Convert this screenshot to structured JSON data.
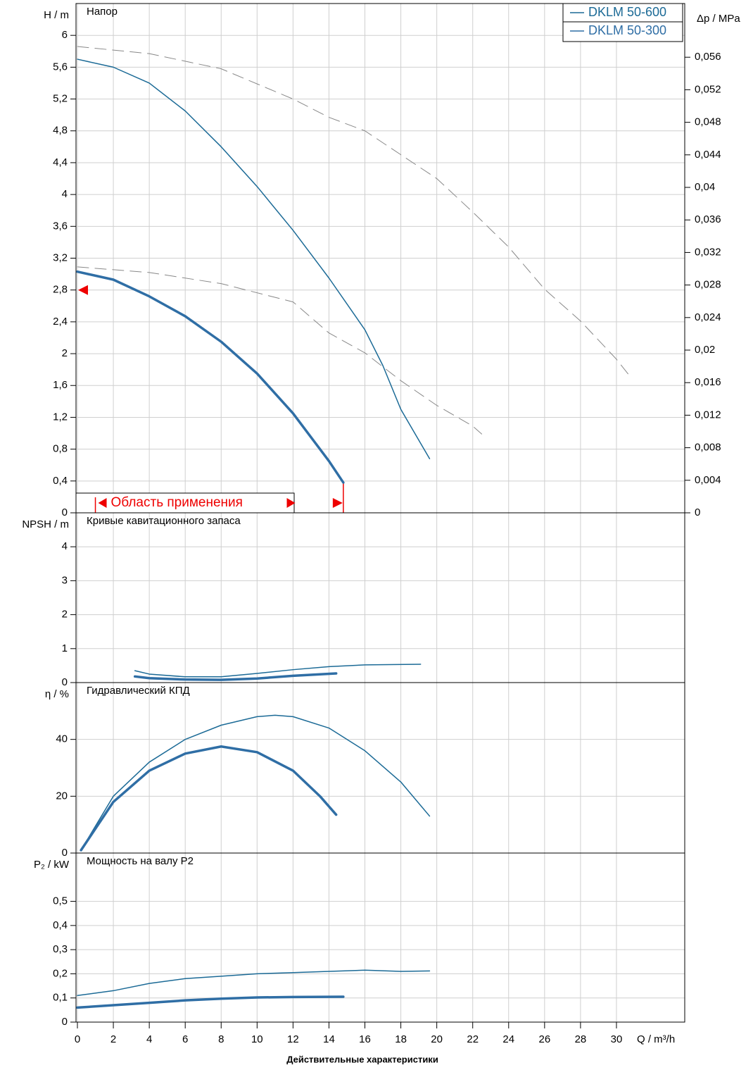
{
  "chart_data": [
    {
      "type": "line",
      "title": "Напор",
      "ylabel": "H / m",
      "y2label": "Δp / MPa",
      "ylim": [
        0,
        6.4
      ],
      "yticks": [
        0,
        {
          "value": 0.4,
          "label": "0,4"
        },
        {
          "value": 0.8,
          "label": "0,8"
        },
        {
          "value": 1.2,
          "label": "1,2"
        },
        {
          "value": 1.6,
          "label": "1,6"
        },
        2,
        {
          "value": 2.4,
          "label": "2,4"
        },
        {
          "value": 2.8,
          "label": "2,8"
        },
        {
          "value": 3.2,
          "label": "3,2"
        },
        {
          "value": 3.6,
          "label": "3,6"
        },
        4,
        {
          "value": 4.4,
          "label": "4,4"
        },
        {
          "value": 4.8,
          "label": "4,8"
        },
        {
          "value": 5.2,
          "label": "5,2"
        },
        {
          "value": 5.6,
          "label": "5,6"
        },
        6
      ],
      "y2lim": [
        0,
        0.0626
      ],
      "y2ticks": [
        0,
        {
          "value": 0.004,
          "label": "0,004"
        },
        {
          "value": 0.008,
          "label": "0,008"
        },
        {
          "value": 0.012,
          "label": "0,012"
        },
        {
          "value": 0.016,
          "label": "0,016"
        },
        {
          "value": 0.02,
          "label": "0,02"
        },
        {
          "value": 0.024,
          "label": "0,024"
        },
        {
          "value": 0.028,
          "label": "0,028"
        },
        {
          "value": 0.032,
          "label": "0,032"
        },
        {
          "value": 0.036,
          "label": "0,036"
        },
        {
          "value": 0.04,
          "label": "0,04"
        },
        {
          "value": 0.044,
          "label": "0,044"
        },
        {
          "value": 0.048,
          "label": "0,048"
        },
        {
          "value": 0.052,
          "label": "0,052"
        },
        {
          "value": 0.056,
          "label": "0,056"
        }
      ],
      "grid": true,
      "legend": "top-right",
      "annotation": "Область применения",
      "application_range": [
        1,
        14.8
      ],
      "max_head_marker": 2.8,
      "series": [
        {
          "name": "DKLM 50-600",
          "color": "#1b6a96",
          "width": 1.5,
          "x": [
            0,
            2,
            4,
            6,
            8,
            10,
            12,
            14,
            16,
            17,
            18,
            19.6
          ],
          "values": [
            5.7,
            5.6,
            5.4,
            5.05,
            4.6,
            4.1,
            3.55,
            2.95,
            2.3,
            1.85,
            1.3,
            0.68
          ]
        },
        {
          "name": "DKLM 50-300",
          "color": "#2f6ea5",
          "width": 3.5,
          "x": [
            0,
            2,
            4,
            6,
            8,
            10,
            12,
            14,
            14.8
          ],
          "values": [
            3.03,
            2.93,
            2.72,
            2.47,
            2.15,
            1.75,
            1.25,
            0.65,
            0.38
          ]
        },
        {
          "color": "#888888",
          "width": 1,
          "dashed": true,
          "x": [
            0,
            4,
            8,
            12,
            14,
            16,
            18,
            20,
            22,
            24,
            26,
            28,
            30,
            30.7
          ],
          "values": [
            5.86,
            5.77,
            5.58,
            5.2,
            4.97,
            4.8,
            4.5,
            4.2,
            3.78,
            3.34,
            2.81,
            2.41,
            1.93,
            1.73
          ]
        },
        {
          "color": "#888888",
          "width": 1,
          "dashed": true,
          "x": [
            0,
            4,
            8,
            12,
            14,
            16,
            18,
            20,
            22,
            22.5
          ],
          "values": [
            3.09,
            3.02,
            2.88,
            2.65,
            2.26,
            2.01,
            1.66,
            1.35,
            1.09,
            0.99
          ]
        }
      ]
    },
    {
      "type": "line",
      "title": "Кривые кавитационного запаса",
      "ylabel": "NPSH / m",
      "ylim": [
        0,
        5
      ],
      "yticks": [
        0,
        1,
        2,
        3,
        4
      ],
      "grid": true,
      "series": [
        {
          "color": "#1b6a96",
          "width": 1.5,
          "x": [
            3.2,
            4,
            6,
            8,
            10,
            12,
            14,
            16,
            19.1
          ],
          "values": [
            0.35,
            0.25,
            0.17,
            0.17,
            0.27,
            0.38,
            0.47,
            0.52,
            0.54
          ]
        },
        {
          "color": "#2f6ea5",
          "width": 3.5,
          "x": [
            3.2,
            4,
            6,
            8,
            10,
            12,
            14.4
          ],
          "values": [
            0.18,
            0.13,
            0.09,
            0.08,
            0.12,
            0.2,
            0.27
          ]
        }
      ]
    },
    {
      "type": "line",
      "title": "Гидравлический КПД",
      "ylabel": "η / %",
      "ylim": [
        0,
        60
      ],
      "yticks": [
        0,
        20,
        40
      ],
      "grid": true,
      "series": [
        {
          "color": "#1b6a96",
          "width": 1.5,
          "x": [
            0.2,
            2,
            4,
            6,
            8,
            10,
            11,
            12,
            14,
            16,
            18,
            19.6
          ],
          "values": [
            1,
            20,
            32,
            40,
            45,
            48,
            48.5,
            48,
            44,
            36,
            25,
            13
          ]
        },
        {
          "color": "#2f6ea5",
          "width": 3.5,
          "x": [
            0.2,
            2,
            4,
            6,
            8,
            10,
            12,
            13.5,
            14.4
          ],
          "values": [
            1,
            18,
            29,
            35,
            37.5,
            35.5,
            29,
            20,
            13.5
          ]
        }
      ]
    },
    {
      "type": "line",
      "title": "Мощность на валу P2",
      "ylabel": "P₂ / kW",
      "ylim": [
        0,
        0.7
      ],
      "yticks": [
        0,
        {
          "value": 0.1,
          "label": "0,1"
        },
        {
          "value": 0.2,
          "label": "0,2"
        },
        {
          "value": 0.3,
          "label": "0,3"
        },
        {
          "value": 0.4,
          "label": "0,4"
        },
        {
          "value": 0.5,
          "label": "0,5"
        }
      ],
      "grid": true,
      "xlabel": "Q / m³/h",
      "xlim": [
        0,
        33.8
      ],
      "xticks": [
        0,
        2,
        4,
        6,
        8,
        10,
        12,
        14,
        16,
        18,
        20,
        22,
        24,
        26,
        28,
        30
      ],
      "caption": "Действительные характеристики",
      "series": [
        {
          "color": "#1b6a96",
          "width": 1.5,
          "x": [
            0,
            2,
            4,
            6,
            8,
            10,
            12,
            14,
            16,
            18,
            19.6
          ],
          "values": [
            0.11,
            0.13,
            0.16,
            0.18,
            0.19,
            0.2,
            0.205,
            0.21,
            0.215,
            0.21,
            0.212
          ]
        },
        {
          "color": "#2f6ea5",
          "width": 3.5,
          "x": [
            0,
            2,
            4,
            6,
            8,
            10,
            12,
            14.8
          ],
          "values": [
            0.06,
            0.07,
            0.08,
            0.09,
            0.097,
            0.102,
            0.104,
            0.105
          ]
        }
      ]
    }
  ]
}
